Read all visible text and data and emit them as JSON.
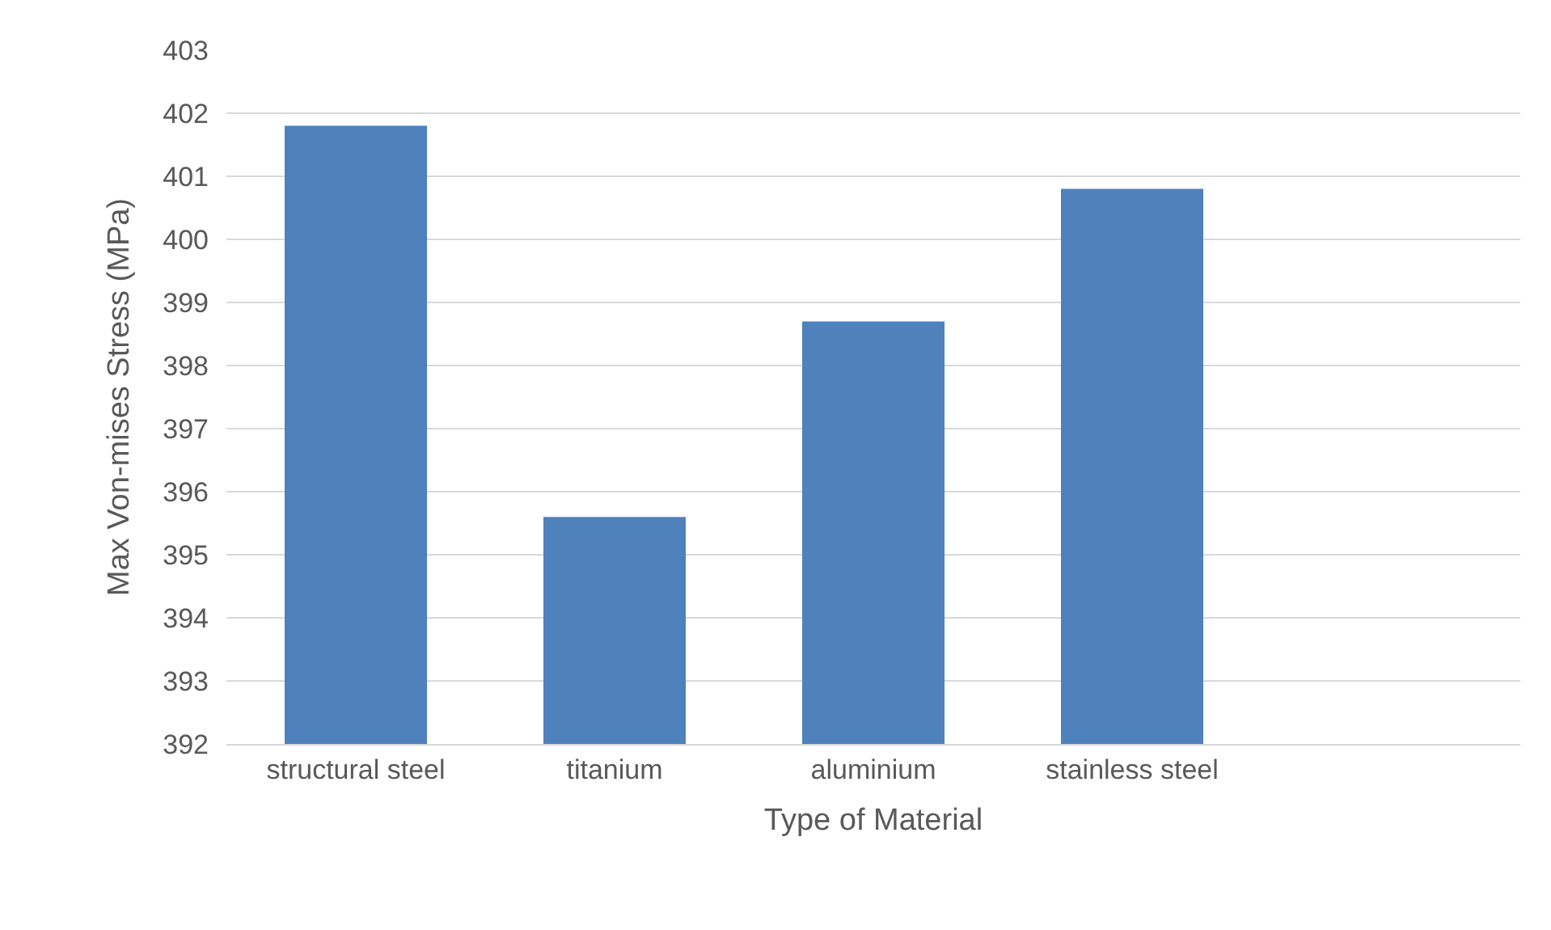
{
  "chart_data": {
    "type": "bar",
    "xlabel": "Type of Material",
    "ylabel": "Max Von-mises Stress (MPa)",
    "categories": [
      "structural steel",
      "titanium",
      "aluminium",
      "stainless steel",
      null
    ],
    "values": [
      401.8,
      395.6,
      398.7,
      400.8,
      null
    ],
    "color": "#4f81bd",
    "ylim": [
      392,
      403
    ],
    "yticks": [
      392,
      393,
      394,
      395,
      396,
      397,
      398,
      399,
      400,
      401,
      402,
      403
    ],
    "grid": "y",
    "legend": false
  }
}
